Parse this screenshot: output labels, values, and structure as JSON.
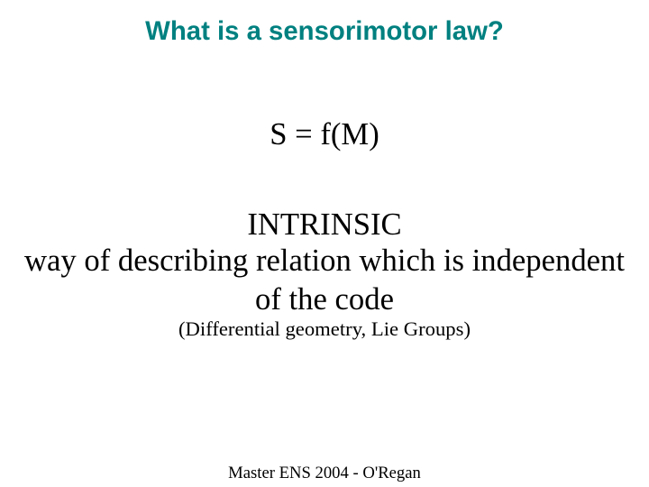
{
  "title": {
    "text": "What is a sensorimotor law?",
    "color": "#008080",
    "fontsize_pt": 22
  },
  "equation": {
    "text": "S = f(M)",
    "color": "#000000",
    "fontsize_pt": 26
  },
  "intrinsic": {
    "text": "INTRINSIC",
    "color": "#000000",
    "fontsize_pt": 26
  },
  "description": {
    "line1": "way of describing relation which is independent",
    "line2": "of the code",
    "color": "#000000",
    "fontsize_pt": 26
  },
  "note": {
    "text": "(Differential geometry, Lie Groups)",
    "color": "#000000",
    "fontsize_pt": 17
  },
  "footer": {
    "text": "Master ENS 2004 - O'Regan",
    "color": "#000000",
    "fontsize_pt": 14
  }
}
